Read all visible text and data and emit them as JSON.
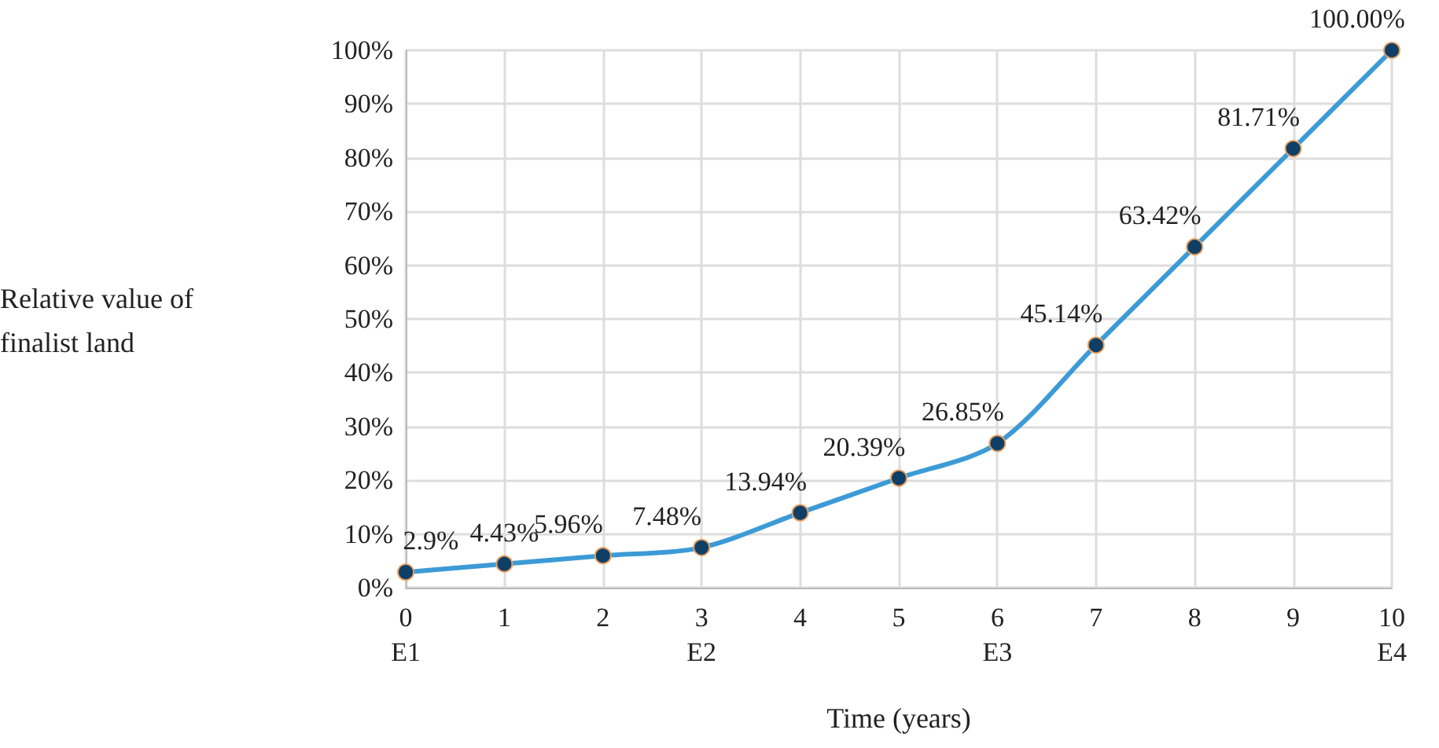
{
  "chart_data": {
    "type": "line",
    "xlabel": "Time (years)",
    "ylabel": "Relative value of finalist land",
    "categories": [
      "0\nE1",
      "1",
      "2",
      "3\nE2",
      "4",
      "5",
      "6\nE3",
      "7",
      "8",
      "9",
      "10\nE4"
    ],
    "series": [
      {
        "color": "#3c9bd6",
        "values": [
          2.9,
          4.43,
          5.96,
          7.48,
          13.94,
          20.39,
          26.85,
          45.14,
          63.42,
          81.71,
          100
        ],
        "value_labels": [
          "2.9%",
          "4.43%",
          "5.96%",
          "7.48%",
          "13.94%",
          "20.39%",
          "26.85%",
          "45.14%",
          "63.42%",
          "81.71%",
          "100.00%"
        ]
      }
    ],
    "ylim": [
      0,
      100
    ],
    "yticks": [
      {
        "value": 0,
        "label": "0%"
      },
      {
        "value": 10,
        "label": "10%"
      },
      {
        "value": 20,
        "label": "20%"
      },
      {
        "value": 30,
        "label": "30%"
      },
      {
        "value": 40,
        "label": "40%"
      },
      {
        "value": 50,
        "label": "50%"
      },
      {
        "value": 60,
        "label": "60%"
      },
      {
        "value": 70,
        "label": "70%"
      },
      {
        "value": 80,
        "label": "80%"
      },
      {
        "value": 90,
        "label": "90%"
      },
      {
        "value": 100,
        "label": "100%"
      }
    ],
    "grid": true,
    "marker": "circle",
    "line_style": "solid"
  }
}
